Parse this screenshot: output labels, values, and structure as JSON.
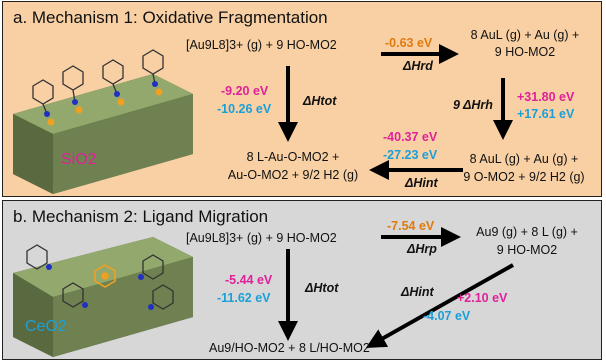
{
  "panel_a": {
    "title": "a. Mechanism 1: Oxidative Fragmentation",
    "reactant": "[Au9L8]3+ (g) + 9 HO-MO2",
    "top_right_1": "8 AuL (g) + Au (g) +",
    "top_right_2": "9 HO-MO2",
    "bottom_right_1": "8 AuL (g) + Au (g) +",
    "bottom_right_2": "9 O-MO2 + 9/2 H2 (g)",
    "product_1": "8 L-Au-O-MO2 +",
    "product_2": "Au-O-MO2 + 9/2 H2 (g)",
    "dh_rd_value": "-0.63 eV",
    "dh_rd_label": "ΔHrd",
    "dh_rh_label": "9 ΔHrh",
    "dh_rh_magenta": "+31.80 eV",
    "dh_rh_cyan": "+17.61 eV",
    "dh_int_magenta": "-40.37 eV",
    "dh_int_cyan": "-27.23 eV",
    "dh_int_label": "ΔHint",
    "dh_tot_label": "ΔHtot",
    "dh_tot_magenta": "-9.20 eV",
    "dh_tot_cyan": "-10.26 eV",
    "support": "SiO2"
  },
  "panel_b": {
    "title": "b. Mechanism 2: Ligand Migration",
    "reactant": "[Au9L8]3+ (g) + 9 HO-MO2",
    "top_right_1": "Au9 (g) + 8 L (g) +",
    "top_right_2": "9 HO-MO2",
    "product": "Au9/HO-MO2 + 8 L/HO-MO2",
    "dh_rp_value": "-7.54 eV",
    "dh_rp_label": "ΔHrp",
    "dh_tot_label": "ΔHtot",
    "dh_tot_magenta": "-5.44 eV",
    "dh_tot_cyan": "-11.62 eV",
    "dh_int_label": "ΔHint",
    "dh_int_magenta": "+2.10 eV",
    "dh_int_cyan": "-4.07 eV",
    "support": "CeO2"
  },
  "colors": {
    "panel_a_bg": "#f8d0a4",
    "panel_b_bg": "#d7d7d7",
    "slab": "#8fa36a",
    "orange": "#e07a10",
    "magenta": "#e0219a",
    "cyan": "#1aa0d8"
  }
}
